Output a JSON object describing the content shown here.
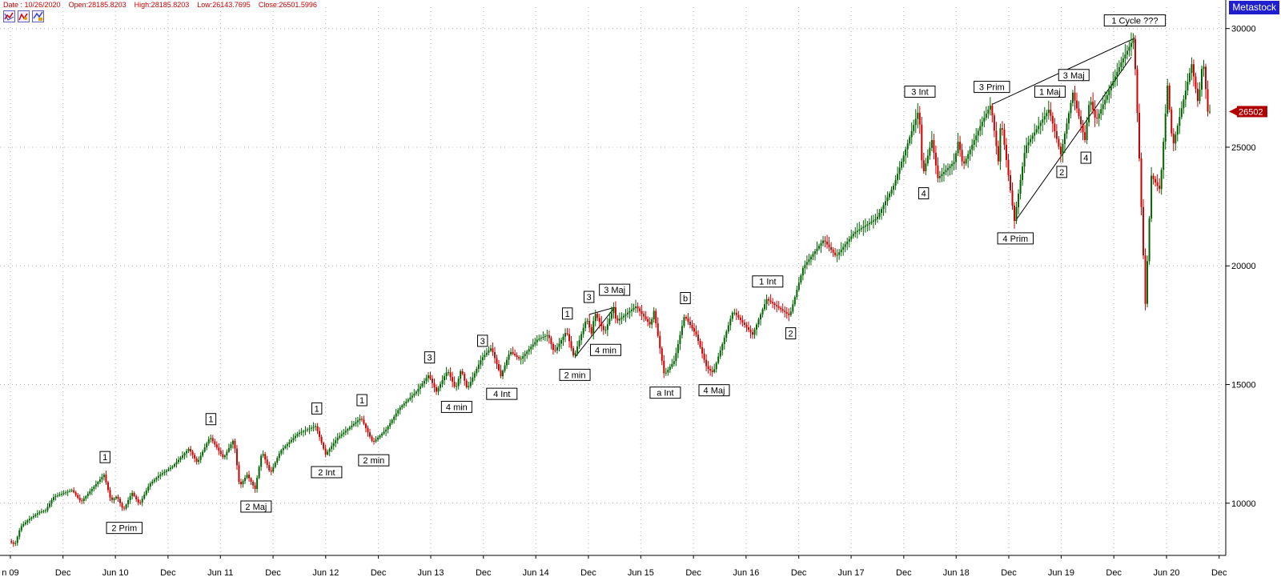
{
  "header": {
    "date": "Date : 10/26/2020",
    "open": "Open:28185.8203",
    "high": "High:28185.8203",
    "low": "Low:26143.7695",
    "close": "Close:26501.5996",
    "brand": "Metastock"
  },
  "toolbar_icons": [
    "chart-settings-icon",
    "chart-indicator-icon",
    "chart-expert-icon"
  ],
  "colors": {
    "up": "#006400",
    "down": "#cc0000",
    "grid": "#b0b0b0",
    "price_marker": "#b00000",
    "brand": "#1f1fd0"
  },
  "chart_data": {
    "type": "ohlc",
    "grid": true,
    "y_axis_side": "right",
    "ylim": [
      7800,
      30900
    ],
    "y_ticks": [
      {
        "value": 10000,
        "label": "10000"
      },
      {
        "value": 15000,
        "label": "15000"
      },
      {
        "value": 20000,
        "label": "20000"
      },
      {
        "value": 25000,
        "label": "25000"
      },
      {
        "value": 30000,
        "label": "30000"
      }
    ],
    "x_ticks": [
      {
        "date": "2009-06-01",
        "label": "n 09"
      },
      {
        "date": "2009-12-01",
        "label": "Dec"
      },
      {
        "date": "2010-06-01",
        "label": "Jun 10"
      },
      {
        "date": "2010-12-01",
        "label": "Dec"
      },
      {
        "date": "2011-06-01",
        "label": "Jun 11"
      },
      {
        "date": "2011-12-01",
        "label": "Dec"
      },
      {
        "date": "2012-06-01",
        "label": "Jun 12"
      },
      {
        "date": "2012-12-01",
        "label": "Dec"
      },
      {
        "date": "2013-06-01",
        "label": "Jun 13"
      },
      {
        "date": "2013-12-01",
        "label": "Dec"
      },
      {
        "date": "2014-06-01",
        "label": "Jun 14"
      },
      {
        "date": "2014-12-01",
        "label": "Dec"
      },
      {
        "date": "2015-06-01",
        "label": "Jun 15"
      },
      {
        "date": "2015-12-01",
        "label": "Dec"
      },
      {
        "date": "2016-06-01",
        "label": "Jun 16"
      },
      {
        "date": "2016-12-01",
        "label": "Dec"
      },
      {
        "date": "2017-06-01",
        "label": "Jun 17"
      },
      {
        "date": "2017-12-01",
        "label": "Dec"
      },
      {
        "date": "2018-06-01",
        "label": "Jun 18"
      },
      {
        "date": "2018-12-01",
        "label": "Dec"
      },
      {
        "date": "2019-06-01",
        "label": "Jun 19"
      },
      {
        "date": "2019-12-01",
        "label": "Dec"
      },
      {
        "date": "2020-06-01",
        "label": "Jun 20"
      },
      {
        "date": "2020-12-01",
        "label": "Dec"
      }
    ],
    "last_price_label": "26502",
    "last_price_value": 26502,
    "price_path": [
      [
        "2009-06-01",
        8400
      ],
      [
        "2009-06-20",
        8250
      ],
      [
        "2009-07-10",
        9000
      ],
      [
        "2009-08-05",
        9300
      ],
      [
        "2009-09-10",
        9600
      ],
      [
        "2009-10-05",
        9700
      ],
      [
        "2009-11-01",
        10250
      ],
      [
        "2009-12-01",
        10400
      ],
      [
        "2010-01-05",
        10550
      ],
      [
        "2010-02-05",
        10050
      ],
      [
        "2010-03-01",
        10400
      ],
      [
        "2010-04-26",
        11200
      ],
      [
        "2010-05-20",
        10100
      ],
      [
        "2010-06-10",
        10300
      ],
      [
        "2010-07-02",
        9700
      ],
      [
        "2010-08-01",
        10450
      ],
      [
        "2010-08-27",
        9950
      ],
      [
        "2010-10-01",
        10800
      ],
      [
        "2010-11-01",
        11150
      ],
      [
        "2010-12-20",
        11550
      ],
      [
        "2011-02-15",
        12300
      ],
      [
        "2011-03-16",
        11700
      ],
      [
        "2011-04-29",
        12800
      ],
      [
        "2011-06-15",
        11900
      ],
      [
        "2011-07-21",
        12700
      ],
      [
        "2011-08-10",
        10700
      ],
      [
        "2011-09-05",
        11200
      ],
      [
        "2011-10-03",
        10600
      ],
      [
        "2011-10-27",
        12200
      ],
      [
        "2011-11-25",
        11250
      ],
      [
        "2011-12-30",
        12200
      ],
      [
        "2012-03-01",
        12950
      ],
      [
        "2012-05-01",
        13250
      ],
      [
        "2012-06-04",
        12050
      ],
      [
        "2012-07-15",
        12750
      ],
      [
        "2012-10-05",
        13600
      ],
      [
        "2012-11-15",
        12550
      ],
      [
        "2012-12-31",
        13100
      ],
      [
        "2013-02-15",
        14000
      ],
      [
        "2013-04-15",
        14700
      ],
      [
        "2013-05-28",
        15400
      ],
      [
        "2013-06-24",
        14700
      ],
      [
        "2013-08-02",
        15600
      ],
      [
        "2013-08-30",
        14800
      ],
      [
        "2013-09-18",
        15650
      ],
      [
        "2013-10-09",
        14800
      ],
      [
        "2013-11-28",
        16100
      ],
      [
        "2014-01-01",
        16550
      ],
      [
        "2014-02-03",
        15350
      ],
      [
        "2014-03-07",
        16400
      ],
      [
        "2014-04-11",
        16050
      ],
      [
        "2014-06-10",
        16900
      ],
      [
        "2014-07-17",
        17100
      ],
      [
        "2014-08-07",
        16350
      ],
      [
        "2014-09-19",
        17250
      ],
      [
        "2014-10-15",
        16150
      ],
      [
        "2014-11-28",
        17800
      ],
      [
        "2014-12-16",
        17100
      ],
      [
        "2014-12-26",
        18050
      ],
      [
        "2015-01-30",
        17200
      ],
      [
        "2015-03-02",
        18250
      ],
      [
        "2015-03-11",
        17650
      ],
      [
        "2015-05-19",
        18300
      ],
      [
        "2015-07-08",
        17500
      ],
      [
        "2015-07-20",
        18100
      ],
      [
        "2015-08-25",
        15400
      ],
      [
        "2015-09-29",
        16000
      ],
      [
        "2015-11-03",
        17900
      ],
      [
        "2015-12-14",
        17100
      ],
      [
        "2016-01-20",
        15700
      ],
      [
        "2016-02-11",
        15500
      ],
      [
        "2016-04-20",
        18100
      ],
      [
        "2016-06-27",
        17100
      ],
      [
        "2016-08-15",
        18600
      ],
      [
        "2016-11-03",
        17900
      ],
      [
        "2016-12-20",
        19950
      ],
      [
        "2017-03-01",
        21100
      ],
      [
        "2017-04-13",
        20400
      ],
      [
        "2017-06-15",
        21400
      ],
      [
        "2017-09-01",
        22000
      ],
      [
        "2017-10-31",
        23400
      ],
      [
        "2018-01-26",
        26600
      ],
      [
        "2018-02-08",
        23800
      ],
      [
        "2018-03-12",
        25300
      ],
      [
        "2018-04-02",
        23700
      ],
      [
        "2018-05-30",
        24400
      ],
      [
        "2018-06-12",
        25300
      ],
      [
        "2018-06-28",
        24200
      ],
      [
        "2018-08-31",
        26000
      ],
      [
        "2018-10-03",
        26800
      ],
      [
        "2018-10-29",
        24400
      ],
      [
        "2018-11-07",
        26200
      ],
      [
        "2018-12-24",
        21900
      ],
      [
        "2019-01-31",
        25000
      ],
      [
        "2019-04-23",
        26600
      ],
      [
        "2019-06-03",
        24700
      ],
      [
        "2019-07-15",
        27300
      ],
      [
        "2019-08-26",
        25300
      ],
      [
        "2019-09-12",
        27100
      ],
      [
        "2019-10-03",
        26100
      ],
      [
        "2019-12-31",
        28600
      ],
      [
        "2020-02-12",
        29600
      ],
      [
        "2020-02-28",
        25400
      ],
      [
        "2020-03-23",
        18400
      ],
      [
        "2020-04-13",
        23800
      ],
      [
        "2020-05-13",
        23200
      ],
      [
        "2020-06-08",
        27600
      ],
      [
        "2020-06-26",
        25000
      ],
      [
        "2020-08-31",
        28500
      ],
      [
        "2020-09-23",
        26800
      ],
      [
        "2020-10-09",
        28800
      ],
      [
        "2020-10-26",
        26500
      ]
    ],
    "annotations": [
      {
        "label": "1",
        "date": "2010-04-26",
        "value": 11200,
        "pos": "above"
      },
      {
        "label": "2 Prim",
        "date": "2010-07-02",
        "value": 9700,
        "pos": "below"
      },
      {
        "label": "1",
        "date": "2011-04-29",
        "value": 12800,
        "pos": "above"
      },
      {
        "label": "2 Maj",
        "date": "2011-10-03",
        "value": 10600,
        "pos": "below"
      },
      {
        "label": "1",
        "date": "2012-05-01",
        "value": 13250,
        "pos": "above"
      },
      {
        "label": "2 Int",
        "date": "2012-06-04",
        "value": 12050,
        "pos": "below"
      },
      {
        "label": "1",
        "date": "2012-10-05",
        "value": 13600,
        "pos": "above"
      },
      {
        "label": "2 min",
        "date": "2012-11-15",
        "value": 12550,
        "pos": "below"
      },
      {
        "label": "3",
        "date": "2013-05-28",
        "value": 15400,
        "pos": "above"
      },
      {
        "label": "4 min",
        "date": "2013-08-30",
        "value": 14800,
        "pos": "below"
      },
      {
        "label": "3",
        "date": "2013-11-28",
        "value": 16100,
        "pos": "above"
      },
      {
        "label": "4 Int",
        "date": "2014-02-03",
        "value": 15350,
        "pos": "below"
      },
      {
        "label": "1",
        "date": "2014-09-19",
        "value": 17250,
        "pos": "above"
      },
      {
        "label": "2 min",
        "date": "2014-10-15",
        "value": 16150,
        "pos": "below"
      },
      {
        "label": "3",
        "date": "2014-12-03",
        "value": 17950,
        "pos": "above"
      },
      {
        "label": "4 min",
        "date": "2015-01-30",
        "value": 17200,
        "pos": "below"
      },
      {
        "label": "3 Maj",
        "date": "2015-03-02",
        "value": 18250,
        "pos": "above"
      },
      {
        "label": "a Int",
        "date": "2015-08-25",
        "value": 15400,
        "pos": "below"
      },
      {
        "label": "b",
        "date": "2015-11-03",
        "value": 17900,
        "pos": "above"
      },
      {
        "label": "4 Maj",
        "date": "2016-02-11",
        "value": 15500,
        "pos": "below"
      },
      {
        "label": "1 Int",
        "date": "2016-08-15",
        "value": 18600,
        "pos": "above"
      },
      {
        "label": "2",
        "date": "2016-11-03",
        "value": 17900,
        "pos": "below"
      },
      {
        "label": "3 Int",
        "date": "2018-01-26",
        "value": 26600,
        "pos": "above"
      },
      {
        "label": "4",
        "date": "2018-02-08",
        "value": 23800,
        "pos": "below"
      },
      {
        "label": "3 Prim",
        "date": "2018-10-03",
        "value": 26800,
        "pos": "above"
      },
      {
        "label": "4 Prim",
        "date": "2018-12-24",
        "value": 21900,
        "pos": "below"
      },
      {
        "label": "1 Maj",
        "date": "2019-04-23",
        "value": 26600,
        "pos": "above"
      },
      {
        "label": "2",
        "date": "2019-06-03",
        "value": 24700,
        "pos": "below"
      },
      {
        "label": "3 Maj",
        "date": "2019-07-15",
        "value": 27300,
        "pos": "above"
      },
      {
        "label": "4",
        "date": "2019-08-26",
        "value": 25300,
        "pos": "below"
      },
      {
        "label": "1 Cycle ???",
        "date": "2020-02-12",
        "value": 29600,
        "pos": "above"
      }
    ],
    "trendlines": [
      {
        "from": [
          "2014-10-15",
          16150
        ],
        "to": [
          "2015-03-02",
          18250
        ]
      },
      {
        "from": [
          "2014-12-03",
          17950
        ],
        "to": [
          "2015-03-02",
          18250
        ]
      },
      {
        "from": [
          "2018-10-03",
          26800
        ],
        "to": [
          "2020-02-12",
          29600
        ]
      },
      {
        "from": [
          "2018-12-24",
          21900
        ],
        "to": [
          "2020-01-31",
          28800
        ]
      }
    ]
  }
}
